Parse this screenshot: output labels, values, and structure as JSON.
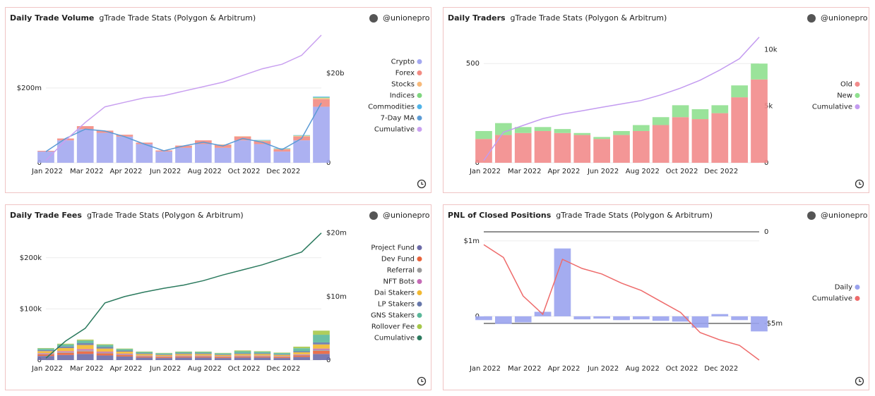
{
  "chart_data": [
    {
      "type": "bar",
      "title": "Daily Trade Volume",
      "subtitle": "gTrade Trade Stats (Polygon & Arbitrum)",
      "author": "@unionepro",
      "x": [
        "2022-01-01",
        "2022-01-29",
        "2022-02-26",
        "2022-03-26",
        "2022-04-23",
        "2022-05-21",
        "2022-06-18",
        "2022-07-16",
        "2022-08-13",
        "2022-09-10",
        "2022-10-08",
        "2022-11-05",
        "2022-12-03",
        "2022-12-31",
        "2023-01-28"
      ],
      "xlim": [
        "2022-01-01",
        "2023-01-28"
      ],
      "xticks": [
        {
          "value": "2022-01-03",
          "label": "Jan 2022"
        },
        {
          "value": "2022-02-28",
          "label": "Mar 2022"
        },
        {
          "value": "2022-04-25",
          "label": "Apr 2022"
        },
        {
          "value": "2022-06-20",
          "label": "Jun 2022"
        },
        {
          "value": "2022-08-15",
          "label": "Aug 2022"
        },
        {
          "value": "2022-10-10",
          "label": "Oct 2022"
        },
        {
          "value": "2022-12-05",
          "label": "Dec 2022"
        }
      ],
      "ylim": [
        0,
        345000000
      ],
      "yticks": [
        0,
        {
          "value": 200000000,
          "label": "$200m"
        }
      ],
      "y2lim": [
        0,
        28800000000
      ],
      "y2ticks": [
        0,
        {
          "value": 20000000000,
          "label": "$20b"
        }
      ],
      "grid": true,
      "stacked": true,
      "series": [
        {
          "name": "Crypto",
          "color": "#a3a8f0",
          "values": [
            30000000,
            60000000,
            90000000,
            80000000,
            70000000,
            50000000,
            30000000,
            40000000,
            50000000,
            40000000,
            60000000,
            50000000,
            30000000,
            60000000,
            150000000
          ]
        },
        {
          "name": "Forex",
          "color": "#f28b82",
          "values": [
            2000000,
            5000000,
            8000000,
            6000000,
            5000000,
            4000000,
            3000000,
            6000000,
            10000000,
            8000000,
            10000000,
            8000000,
            6000000,
            10000000,
            20000000
          ]
        },
        {
          "name": "Stocks",
          "color": "#f7b97a",
          "values": [
            0,
            0,
            0,
            0,
            0,
            0,
            0,
            0,
            0,
            1000000,
            1000000,
            1000000,
            1000000,
            2000000,
            3000000
          ]
        },
        {
          "name": "Indices",
          "color": "#7fd67f",
          "values": [
            0,
            0,
            0,
            0,
            0,
            0,
            0,
            0,
            0,
            0,
            0,
            1000000,
            1000000,
            1000000,
            2000000
          ]
        },
        {
          "name": "Commodities",
          "color": "#4fb3e8",
          "values": [
            0,
            0,
            0,
            0,
            0,
            0,
            0,
            0,
            0,
            0,
            0,
            1000000,
            1000000,
            1000000,
            2000000
          ]
        },
        {
          "name": "7-Day MA",
          "color": "#5b9bd5",
          "type": "line",
          "values": [
            30000000,
            65000000,
            90000000,
            85000000,
            70000000,
            50000000,
            32000000,
            45000000,
            55000000,
            45000000,
            65000000,
            55000000,
            35000000,
            65000000,
            160000000
          ]
        },
        {
          "name": "Cumulative",
          "color": "#c9a0f0",
          "type": "line",
          "axis": "y2",
          "values": [
            500000000,
            5000000000,
            9000000000,
            12500000000,
            13500000000,
            14500000000,
            15000000000,
            16000000000,
            17000000000,
            18000000000,
            19500000000,
            21000000000,
            22000000000,
            24000000000,
            28500000000
          ]
        }
      ]
    },
    {
      "type": "bar",
      "title": "Daily Traders",
      "subtitle": "gTrade Trade Stats (Polygon & Arbitrum)",
      "author": "@unionepro",
      "x": [
        "2022-01-01",
        "2022-01-29",
        "2022-02-26",
        "2022-03-26",
        "2022-04-23",
        "2022-05-21",
        "2022-06-18",
        "2022-07-16",
        "2022-08-13",
        "2022-09-10",
        "2022-10-08",
        "2022-11-05",
        "2022-12-03",
        "2022-12-31",
        "2023-01-28"
      ],
      "xlim": [
        "2022-01-01",
        "2023-01-28"
      ],
      "xticks": [
        {
          "value": "2022-01-03",
          "label": "Jan 2022"
        },
        {
          "value": "2022-02-28",
          "label": "Mar 2022"
        },
        {
          "value": "2022-04-25",
          "label": "Apr 2022"
        },
        {
          "value": "2022-06-20",
          "label": "Jun 2022"
        },
        {
          "value": "2022-08-15",
          "label": "Aug 2022"
        },
        {
          "value": "2022-10-10",
          "label": "Oct 2022"
        },
        {
          "value": "2022-12-05",
          "label": "Dec 2022"
        }
      ],
      "ylim": [
        0,
        650
      ],
      "yticks": [
        0,
        500
      ],
      "y2lim": [
        0,
        11400
      ],
      "y2ticks": [
        0,
        {
          "value": 5000,
          "label": "5k"
        },
        {
          "value": 10000,
          "label": "10k"
        }
      ],
      "grid": true,
      "stacked": true,
      "series": [
        {
          "name": "Old",
          "color": "#f28b8b",
          "values": [
            120,
            140,
            150,
            160,
            150,
            140,
            120,
            140,
            160,
            190,
            230,
            220,
            250,
            330,
            420
          ]
        },
        {
          "name": "New",
          "color": "#8fe08f",
          "values": [
            40,
            60,
            30,
            20,
            20,
            10,
            10,
            20,
            30,
            40,
            60,
            50,
            40,
            60,
            80
          ]
        },
        {
          "name": "Cumulative",
          "color": "#c39bf0",
          "type": "line",
          "axis": "y2",
          "values": [
            200,
            2700,
            3300,
            3900,
            4300,
            4600,
            4900,
            5200,
            5500,
            6000,
            6600,
            7300,
            8200,
            9200,
            11100
          ]
        }
      ]
    },
    {
      "type": "bar",
      "title": "Daily Trade Fees",
      "subtitle": "gTrade Trade Stats (Polygon & Arbitrum)",
      "author": "@unionepro",
      "x": [
        "2022-01-01",
        "2022-01-29",
        "2022-02-26",
        "2022-03-26",
        "2022-04-23",
        "2022-05-21",
        "2022-06-18",
        "2022-07-16",
        "2022-08-13",
        "2022-09-10",
        "2022-10-08",
        "2022-11-05",
        "2022-12-03",
        "2022-12-31",
        "2023-01-28"
      ],
      "xlim": [
        "2022-01-01",
        "2023-01-28"
      ],
      "xticks": [
        {
          "value": "2022-01-03",
          "label": "Jan 2022"
        },
        {
          "value": "2022-02-28",
          "label": "Mar 2022"
        },
        {
          "value": "2022-04-25",
          "label": "Apr 2022"
        },
        {
          "value": "2022-06-20",
          "label": "Jun 2022"
        },
        {
          "value": "2022-08-15",
          "label": "Aug 2022"
        },
        {
          "value": "2022-10-10",
          "label": "Oct 2022"
        },
        {
          "value": "2022-12-05",
          "label": "Dec 2022"
        }
      ],
      "ylim": [
        0,
        252000
      ],
      "yticks": [
        0,
        {
          "value": 100000,
          "label": "$100k"
        },
        {
          "value": 200000,
          "label": "$200k"
        }
      ],
      "y2lim": [
        0,
        20300000
      ],
      "y2ticks": [
        0,
        {
          "value": 10000000,
          "label": "$10m"
        },
        {
          "value": 20000000,
          "label": "$20m"
        }
      ],
      "grid": true,
      "stacked": true,
      "series": [
        {
          "name": "Project Fund",
          "color": "#6c6ba8",
          "values": [
            8000,
            10000,
            12000,
            9000,
            7000,
            5000,
            4000,
            5000,
            5000,
            4000,
            5000,
            5000,
            4000,
            6000,
            12000
          ]
        },
        {
          "name": "Dev Fund",
          "color": "#e8623a",
          "values": [
            3000,
            4000,
            5000,
            4000,
            3000,
            2000,
            2000,
            2000,
            2000,
            2000,
            2000,
            2000,
            2000,
            3000,
            6000
          ]
        },
        {
          "name": "Referral",
          "color": "#9b9b9b",
          "values": [
            1000,
            1500,
            2000,
            1500,
            1000,
            800,
            700,
            800,
            800,
            700,
            800,
            800,
            700,
            1000,
            2000
          ]
        },
        {
          "name": "NFT Bots",
          "color": "#c56bb6",
          "values": [
            1500,
            2000,
            2500,
            2000,
            1500,
            1000,
            900,
            1000,
            1000,
            900,
            1000,
            1000,
            900,
            1200,
            2500
          ]
        },
        {
          "name": "Dai Stakers",
          "color": "#f2b830",
          "values": [
            4000,
            6000,
            8000,
            6000,
            4000,
            3000,
            2500,
            3000,
            3000,
            2500,
            3000,
            3000,
            2500,
            4000,
            8000
          ]
        },
        {
          "name": "LP Stakers",
          "color": "#6677aa",
          "values": [
            2000,
            3000,
            3500,
            3000,
            2000,
            1500,
            1200,
            1500,
            1500,
            1200,
            1500,
            1500,
            1200,
            2000,
            4000
          ]
        },
        {
          "name": "GNS Stakers",
          "color": "#5bb89a",
          "values": [
            3000,
            4000,
            5000,
            4000,
            3000,
            2500,
            2000,
            2500,
            2500,
            2000,
            4000,
            3000,
            2500,
            6000,
            15000
          ]
        },
        {
          "name": "Rollover Fee",
          "color": "#a6c84a",
          "values": [
            1000,
            1500,
            2000,
            1500,
            1000,
            800,
            700,
            800,
            800,
            700,
            1500,
            1000,
            800,
            3000,
            8000
          ]
        },
        {
          "name": "Cumulative",
          "color": "#2b7a5e",
          "type": "line",
          "axis": "y2",
          "values": [
            300000,
            3000000,
            5000000,
            9000000,
            10000000,
            10700000,
            11300000,
            11800000,
            12500000,
            13400000,
            14200000,
            15000000,
            16000000,
            17000000,
            20000000
          ]
        }
      ]
    },
    {
      "type": "bar",
      "title": "PNL of Closed Positions",
      "subtitle": "gTrade Trade Stats (Polygon & Arbitrum)",
      "author": "@unionepro",
      "x": [
        "2022-01-01",
        "2022-01-29",
        "2022-02-26",
        "2022-03-26",
        "2022-04-23",
        "2022-05-21",
        "2022-06-18",
        "2022-07-16",
        "2022-08-13",
        "2022-09-10",
        "2022-10-08",
        "2022-11-05",
        "2022-12-03",
        "2022-12-31",
        "2023-01-28"
      ],
      "xlim": [
        "2022-01-01",
        "2023-01-28"
      ],
      "xticks": [
        {
          "value": "2022-01-03",
          "label": "Jan 2022"
        },
        {
          "value": "2022-02-28",
          "label": "Mar 2022"
        },
        {
          "value": "2022-04-25",
          "label": "Apr 2022"
        },
        {
          "value": "2022-06-20",
          "label": "Jun 2022"
        },
        {
          "value": "2022-08-15",
          "label": "Aug 2022"
        },
        {
          "value": "2022-10-10",
          "label": "Oct 2022"
        },
        {
          "value": "2022-12-05",
          "label": "Dec 2022"
        }
      ],
      "ylim": [
        -580000,
        1130000
      ],
      "yticks": [
        0,
        {
          "value": 1000000,
          "label": "$1m"
        }
      ],
      "y2lim": [
        -7000000,
        40000
      ],
      "y2ticks": [
        0,
        {
          "value": -5000000,
          "label": "-$5m"
        }
      ],
      "grid": true,
      "y2grid": true,
      "stacked": false,
      "series": [
        {
          "name": "Daily",
          "color": "#9aa3ee",
          "values": [
            -50000,
            -100000,
            -80000,
            60000,
            900000,
            -40000,
            -30000,
            -50000,
            -40000,
            -60000,
            -70000,
            -150000,
            30000,
            -50000,
            -200000
          ]
        },
        {
          "name": "Cumulative",
          "color": "#ee6b6b",
          "type": "line",
          "axis": "y2",
          "values": [
            -700000,
            -1400000,
            -3500000,
            -4500000,
            -1500000,
            -2000000,
            -2300000,
            -2800000,
            -3200000,
            -3800000,
            -4400000,
            -5500000,
            -5900000,
            -6200000,
            -7000000
          ]
        }
      ]
    }
  ]
}
